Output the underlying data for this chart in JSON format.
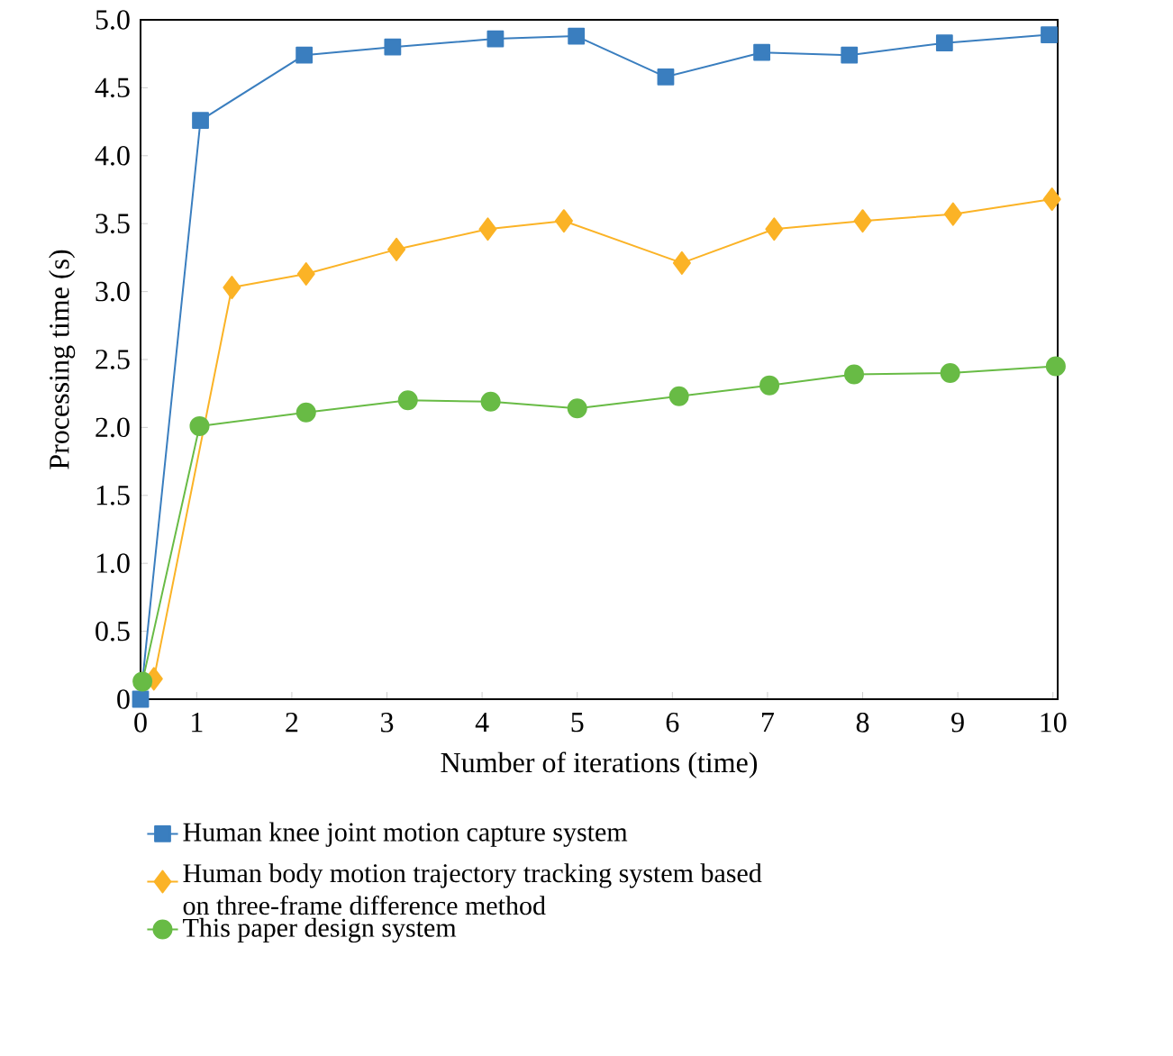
{
  "chart_data": {
    "type": "line",
    "xlabel": "Number of iterations (time)",
    "ylabel": "Processing time (s)",
    "xlim": [
      0.41,
      10.05
    ],
    "ylim": [
      0,
      5
    ],
    "xticks": [
      {
        "value": 0.41,
        "label": "0"
      },
      1,
      2,
      3,
      4,
      5,
      6,
      7,
      8,
      9,
      10
    ],
    "yticks": [
      {
        "value": 0,
        "label": "0"
      },
      0.5,
      {
        "value": 1,
        "label": "1.0"
      },
      1.5,
      {
        "value": 2,
        "label": "2.0"
      },
      2.5,
      {
        "value": 3,
        "label": "3.0"
      },
      3.5,
      {
        "value": 4,
        "label": "4.0"
      },
      4.5,
      {
        "value": 5,
        "label": "5.0"
      }
    ],
    "grid": false,
    "legend": "bottom",
    "series": [
      {
        "name": "Human knee joint motion capture system",
        "color": "#3a7ebf",
        "marker": "square",
        "x": [
          0.41,
          1.04,
          2.13,
          3.06,
          4.14,
          4.99,
          5.93,
          6.94,
          7.86,
          8.86,
          9.96
        ],
        "values": [
          0,
          4.26,
          4.74,
          4.8,
          4.86,
          4.88,
          4.58,
          4.76,
          4.74,
          4.83,
          4.89
        ]
      },
      {
        "name": "Human body motion trajectory tracking system based on three-frame difference method",
        "color": "#fbb326",
        "marker": "diamond",
        "x": [
          0.55,
          1.37,
          2.15,
          3.1,
          4.06,
          4.86,
          6.1,
          7.07,
          8.0,
          8.95,
          9.99
        ],
        "values": [
          0.15,
          3.03,
          3.13,
          3.31,
          3.46,
          3.52,
          3.21,
          3.46,
          3.52,
          3.57,
          3.68
        ]
      },
      {
        "name": "This paper design system",
        "color": "#68bb45",
        "marker": "circle",
        "x": [
          0.43,
          1.03,
          2.15,
          3.22,
          4.09,
          5.0,
          6.07,
          7.02,
          7.91,
          8.92,
          10.03
        ],
        "values": [
          0.13,
          2.01,
          2.11,
          2.2,
          2.19,
          2.14,
          2.23,
          2.31,
          2.39,
          2.4,
          2.45
        ]
      }
    ]
  }
}
